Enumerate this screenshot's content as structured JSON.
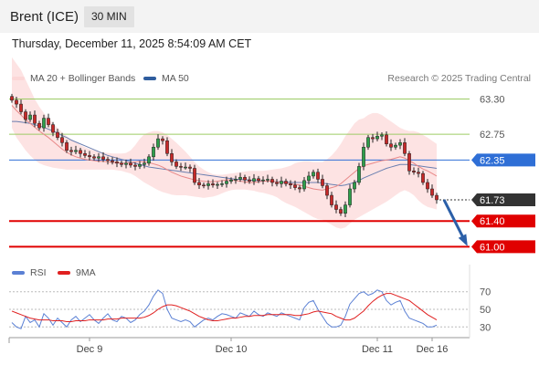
{
  "header": {
    "title": "Brent (ICE)",
    "timeframe": "30 MIN"
  },
  "date_line": "Thursday, December 11, 2025 8:54:09 AM CET",
  "legend": {
    "ma20": {
      "label": "MA 20 + Bollinger Bands",
      "color": "#f08080"
    },
    "ma50": {
      "label": "MA 50",
      "color": "#2f5d9e"
    },
    "rsi": {
      "label": "RSI",
      "color": "#5b80d4"
    },
    "rsi_ma": {
      "label": "9MA",
      "color": "#e02020"
    }
  },
  "copyright": "Research © 2025 Trading Central",
  "chart_data": {
    "type": "candlestick",
    "price_range": [
      60.92,
      63.42
    ],
    "x_labels": [
      {
        "label": "Dec 9",
        "index": 17
      },
      {
        "label": "Dec 10",
        "index": 48
      },
      {
        "label": "Dec 11",
        "index": 80
      },
      {
        "label": "Dec 16",
        "index": 92
      }
    ],
    "levels": [
      {
        "label": "63.30",
        "value": 63.3,
        "kind": "resistance"
      },
      {
        "label": "62.75",
        "value": 62.75,
        "kind": "resistance"
      },
      {
        "label": "62.35",
        "value": 62.35,
        "kind": "pivot"
      },
      {
        "label": "61.73",
        "value": 61.73,
        "kind": "last"
      },
      {
        "label": "61.40",
        "value": 61.4,
        "kind": "support"
      },
      {
        "label": "61.00",
        "value": 61.0,
        "kind": "support"
      }
    ],
    "closes": [
      63.28,
      63.22,
      63.1,
      62.98,
      63.05,
      62.92,
      62.85,
      63.0,
      62.9,
      62.78,
      62.7,
      62.62,
      62.5,
      62.48,
      62.5,
      62.45,
      62.42,
      62.4,
      62.38,
      62.4,
      62.36,
      62.34,
      62.32,
      62.3,
      62.28,
      62.3,
      62.27,
      62.25,
      62.28,
      62.3,
      62.4,
      62.55,
      62.68,
      62.65,
      62.45,
      62.32,
      62.25,
      62.24,
      62.24,
      62.22,
      62.0,
      61.96,
      61.95,
      61.98,
      61.96,
      61.97,
      61.98,
      62.02,
      62.04,
      62.05,
      62.08,
      62.04,
      62.02,
      62.06,
      62.03,
      62.04,
      62.05,
      62.0,
      61.98,
      62.02,
      61.98,
      61.96,
      61.92,
      61.9,
      62.03,
      62.1,
      62.16,
      62.05,
      61.95,
      61.8,
      61.65,
      61.58,
      61.52,
      61.65,
      61.9,
      62.0,
      62.25,
      62.55,
      62.7,
      62.68,
      62.72,
      62.74,
      62.6,
      62.55,
      62.58,
      62.62,
      62.45,
      62.18,
      62.16,
      62.14,
      62.0,
      61.9,
      61.8,
      61.73
    ],
    "ma20": [
      63.2,
      63.12,
      63.05,
      62.98,
      62.92,
      62.86,
      62.8,
      62.75,
      62.7,
      62.64,
      62.58,
      62.52,
      62.47,
      62.43,
      62.4,
      62.38,
      62.36,
      62.35,
      62.34,
      62.33,
      62.33,
      62.32,
      62.31,
      62.31,
      62.3,
      62.3,
      62.31,
      62.32,
      62.33,
      62.32,
      62.31,
      62.29,
      62.27,
      62.24,
      62.2,
      62.16,
      62.13,
      62.1,
      62.08,
      62.06,
      62.04,
      62.03,
      62.02,
      62.01,
      62.01,
      62.02,
      62.03,
      62.04,
      62.04,
      62.03,
      62.02,
      62.01,
      62.0,
      62.0,
      62.01,
      62.02,
      62.02,
      62.02,
      62.01,
      62.0,
      61.99,
      61.98,
      61.97,
      61.96,
      61.94,
      61.92,
      61.9,
      61.89,
      61.88,
      61.9,
      61.92,
      61.94,
      61.98,
      62.04,
      62.1,
      62.16,
      62.22,
      62.26,
      62.28,
      62.3,
      62.32,
      62.34,
      62.35,
      62.36,
      62.38,
      62.4,
      62.38,
      62.34,
      62.3,
      62.25,
      62.21,
      62.18,
      62.14,
      62.1
    ],
    "bb_upper": [
      63.95,
      63.85,
      63.75,
      63.6,
      63.45,
      63.3,
      63.18,
      63.08,
      63.0,
      62.92,
      62.85,
      62.78,
      62.72,
      62.67,
      62.63,
      62.58,
      62.55,
      62.52,
      62.5,
      62.48,
      62.47,
      62.46,
      62.45,
      62.45,
      62.45,
      62.46,
      62.5,
      62.58,
      62.68,
      62.75,
      62.78,
      62.8,
      62.8,
      62.78,
      62.74,
      62.68,
      62.62,
      62.55,
      62.48,
      62.4,
      62.32,
      62.25,
      62.2,
      62.16,
      62.13,
      62.12,
      62.12,
      62.13,
      62.14,
      62.15,
      62.16,
      62.17,
      62.18,
      62.18,
      62.18,
      62.18,
      62.19,
      62.2,
      62.21,
      62.22,
      62.24,
      62.26,
      62.3,
      62.32,
      62.33,
      62.33,
      62.32,
      62.32,
      62.32,
      62.36,
      62.42,
      62.5,
      62.6,
      62.72,
      62.82,
      62.92,
      62.98,
      63.0,
      63.05,
      63.08,
      63.08,
      63.05,
      63.0,
      62.95,
      62.9,
      62.85,
      62.82,
      62.8,
      62.8,
      62.78,
      62.74,
      62.7,
      62.65,
      62.6
    ],
    "bb_lower": [
      62.85,
      62.7,
      62.6,
      62.5,
      62.42,
      62.35,
      62.3,
      62.27,
      62.25,
      62.23,
      62.22,
      62.21,
      62.2,
      62.2,
      62.2,
      62.2,
      62.2,
      62.2,
      62.2,
      62.2,
      62.2,
      62.2,
      62.2,
      62.19,
      62.18,
      62.16,
      62.14,
      62.1,
      62.05,
      62.0,
      61.96,
      61.92,
      61.88,
      61.85,
      61.83,
      61.81,
      61.8,
      61.8,
      61.8,
      61.79,
      61.78,
      61.77,
      61.76,
      61.77,
      61.78,
      61.8,
      61.83,
      61.86,
      61.88,
      61.89,
      61.89,
      61.89,
      61.88,
      61.87,
      61.85,
      61.84,
      61.82,
      61.8,
      61.77,
      61.72,
      61.68,
      61.65,
      61.62,
      61.58,
      61.54,
      61.5,
      61.46,
      61.43,
      61.42,
      61.38,
      61.34,
      61.3,
      61.28,
      61.3,
      61.36,
      61.42,
      61.46,
      61.5,
      61.54,
      61.58,
      61.62,
      61.66,
      61.7,
      61.75,
      61.8,
      61.85,
      61.88,
      61.85,
      61.8,
      61.72,
      61.66,
      61.62,
      61.6,
      61.58
    ],
    "ma50": [
      62.95,
      62.95,
      62.94,
      62.93,
      62.92,
      62.9,
      62.88,
      62.86,
      62.83,
      62.8,
      62.77,
      62.73,
      62.7,
      62.66,
      62.63,
      62.6,
      62.57,
      62.54,
      62.51,
      62.48,
      62.45,
      62.42,
      62.4,
      62.38,
      62.36,
      62.34,
      62.32,
      62.3,
      62.28,
      62.26,
      62.24,
      62.23,
      62.22,
      62.21,
      62.2,
      62.19,
      62.18,
      62.17,
      62.16,
      62.15,
      62.14,
      62.13,
      62.12,
      62.11,
      62.1,
      62.09,
      62.08,
      62.07,
      62.06,
      62.05,
      62.05,
      62.04,
      62.04,
      62.03,
      62.03,
      62.02,
      62.02,
      62.02,
      62.01,
      62.01,
      62.01,
      62.0,
      62.0,
      62.0,
      62.0,
      62.0,
      62.0,
      62.0,
      61.99,
      61.98,
      61.97,
      61.96,
      61.95,
      61.96,
      61.98,
      62.0,
      62.03,
      62.07,
      62.1,
      62.13,
      62.16,
      62.19,
      62.22,
      62.24,
      62.26,
      62.28,
      62.28,
      62.28,
      62.27,
      62.26,
      62.25,
      62.24,
      62.23,
      62.22
    ],
    "forecast": {
      "from": 61.73,
      "to": 61.0
    },
    "rsi": {
      "ticks": [
        70,
        50,
        30
      ],
      "range": [
        22,
        78
      ],
      "values": [
        35,
        30,
        28,
        42,
        35,
        38,
        30,
        45,
        40,
        32,
        40,
        35,
        30,
        38,
        42,
        36,
        40,
        44,
        38,
        34,
        40,
        45,
        38,
        36,
        42,
        40,
        35,
        38,
        44,
        48,
        55,
        65,
        72,
        68,
        50,
        40,
        38,
        36,
        38,
        36,
        30,
        34,
        38,
        40,
        38,
        42,
        45,
        44,
        42,
        40,
        46,
        44,
        42,
        48,
        44,
        42,
        46,
        44,
        42,
        46,
        44,
        42,
        40,
        38,
        52,
        58,
        60,
        50,
        42,
        34,
        30,
        30,
        32,
        42,
        56,
        62,
        68,
        70,
        66,
        68,
        72,
        70,
        60,
        55,
        58,
        60,
        48,
        40,
        38,
        36,
        34,
        30,
        30,
        32
      ],
      "ma": [
        48,
        46,
        44,
        42,
        40,
        39,
        38,
        38,
        38,
        37,
        37,
        37,
        36,
        36,
        37,
        37,
        37,
        38,
        38,
        38,
        38,
        39,
        39,
        39,
        40,
        40,
        40,
        40,
        40,
        41,
        43,
        46,
        50,
        53,
        55,
        55,
        54,
        52,
        50,
        48,
        45,
        42,
        40,
        38,
        37,
        37,
        38,
        39,
        40,
        40,
        41,
        42,
        42,
        43,
        43,
        43,
        44,
        44,
        44,
        44,
        44,
        44,
        43,
        43,
        44,
        45,
        47,
        48,
        47,
        46,
        45,
        42,
        40,
        38,
        38,
        40,
        44,
        48,
        54,
        59,
        63,
        66,
        68,
        68,
        66,
        64,
        62,
        60,
        56,
        52,
        48,
        44,
        41,
        38
      ]
    }
  }
}
